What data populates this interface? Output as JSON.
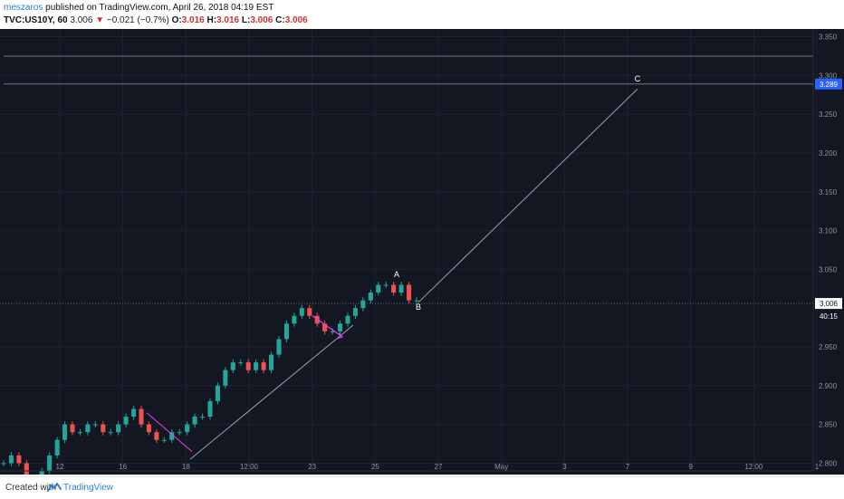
{
  "header": {
    "author": "meszaros",
    "published_text": "published on TradingView.com, April 26, 2018 04:19 EST",
    "symbol": "TVC:US10Y, 60",
    "last": "3.006",
    "change_arrow": "▼",
    "change": "−0.021 (−0.7%)",
    "o_label": "O:",
    "o_value": "3.016",
    "h_label": "H:",
    "h_value": "3.016",
    "l_label": "L:",
    "l_value": "3.006",
    "c_label": "C:",
    "c_value": "3.006"
  },
  "footer": {
    "created_with": "Created with",
    "brand": "TradingView",
    "logo_icon": "tradingview-logo-icon"
  },
  "colors": {
    "background": "#131722",
    "grid": "#1e2330",
    "up": "#26a69a",
    "down": "#ef5350",
    "axis_text": "#8e93a0",
    "annotation_line": "#9aa0ae",
    "magenta": "#e040fb",
    "price_label_bg": "#2962ff",
    "current_label_bg": "#ffffff"
  },
  "chart_data": {
    "type": "candlestick",
    "symbol": "TVC:US10Y",
    "interval": "60",
    "x_tick_labels": [
      "12",
      "16",
      "18",
      "12:00",
      "23",
      "25",
      "27",
      "May",
      "3",
      "7",
      "9",
      "12:00",
      "1"
    ],
    "y_tick_labels": [
      "3.350",
      "3.300",
      "3.250",
      "3.200",
      "3.150",
      "3.100",
      "3.050",
      "2.950",
      "2.900",
      "2.850",
      "2.800"
    ],
    "ylim": [
      2.79,
      3.36
    ],
    "grid": true,
    "price_series": {
      "name": "US10Y",
      "path_values": [
        2.8,
        2.81,
        2.8,
        2.78,
        2.77,
        2.79,
        2.81,
        2.83,
        2.85,
        2.84,
        2.84,
        2.85,
        2.85,
        2.84,
        2.84,
        2.85,
        2.86,
        2.87,
        2.85,
        2.84,
        2.83,
        2.83,
        2.84,
        2.84,
        2.85,
        2.86,
        2.86,
        2.88,
        2.9,
        2.92,
        2.93,
        2.93,
        2.92,
        2.93,
        2.92,
        2.94,
        2.96,
        2.98,
        2.99,
        3.0,
        2.99,
        2.98,
        2.97,
        2.97,
        2.98,
        2.99,
        3.0,
        3.01,
        3.02,
        3.03,
        3.03,
        3.02,
        3.03,
        3.01,
        3.01
      ]
    },
    "wave_labels": [
      {
        "label": "A",
        "value": 3.04
      },
      {
        "label": "B",
        "value": 2.998
      },
      {
        "label": "C",
        "value": 3.292
      }
    ],
    "projection_target": 3.289,
    "price_labels": {
      "target": "3.289",
      "current": "3.006",
      "countdown": "40:15"
    },
    "horizontal_levels": [
      3.325,
      3.289
    ]
  }
}
